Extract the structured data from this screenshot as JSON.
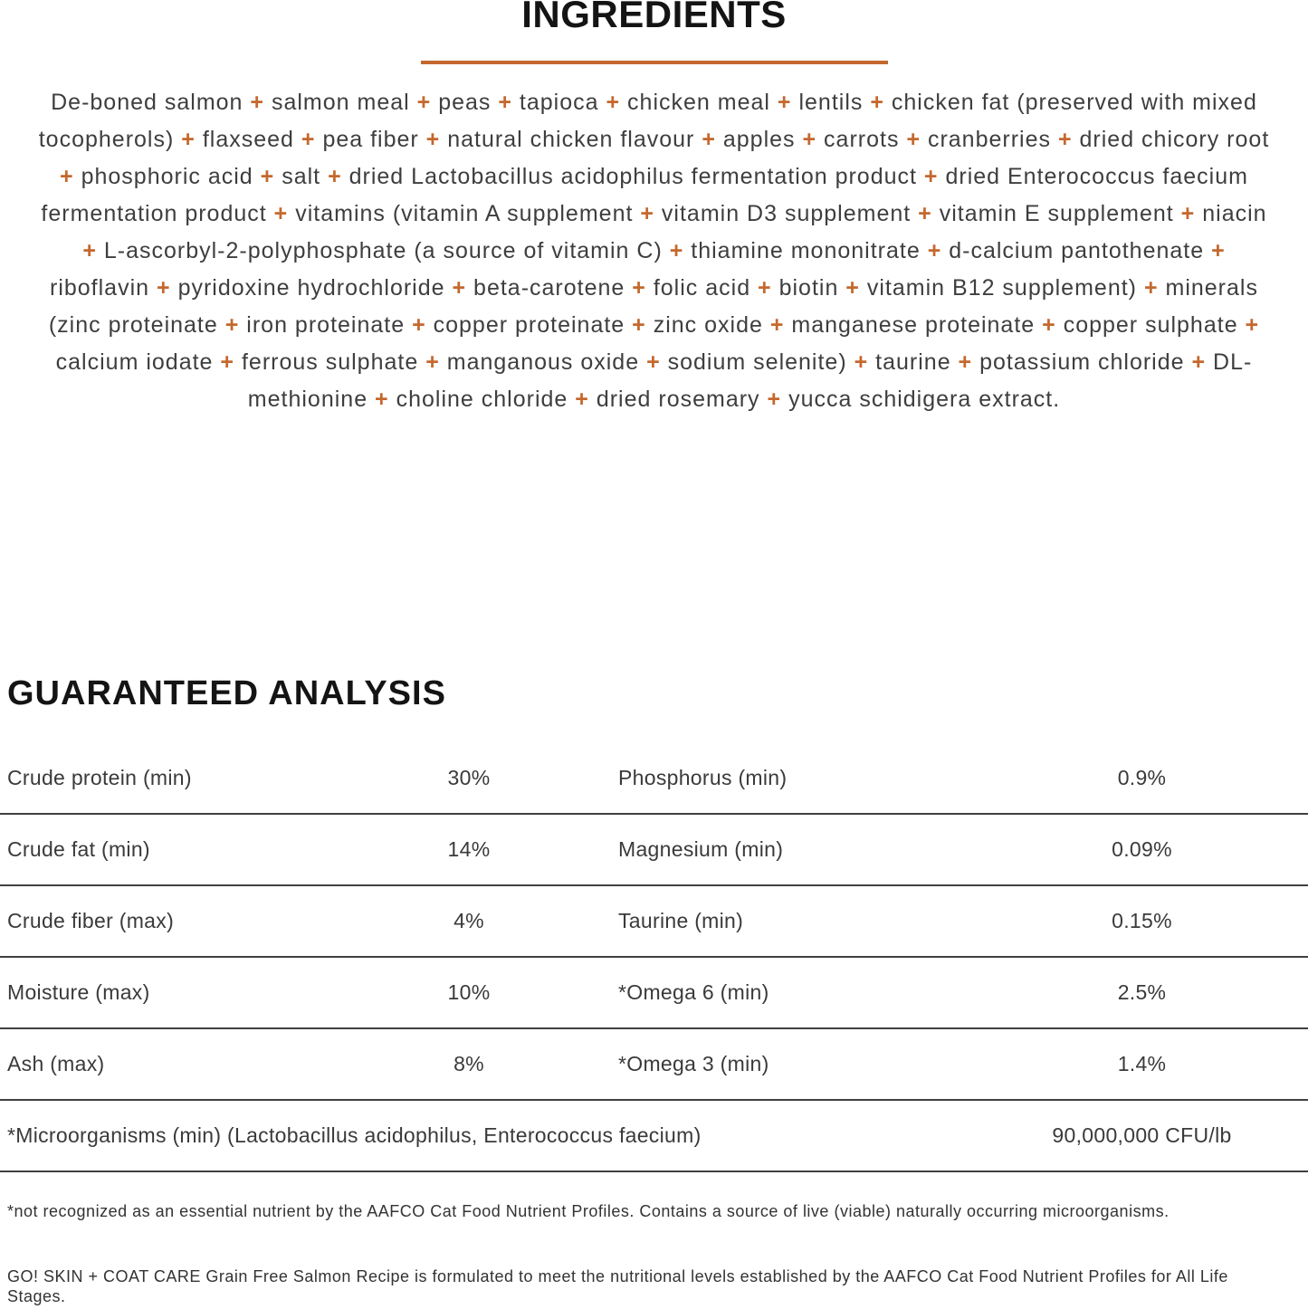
{
  "page": {
    "background": "#ffffff",
    "accent_orange": "#C4682E",
    "body_text_color": "#3E3E3E",
    "heading_color": "#141414",
    "divider_color": "#404040"
  },
  "ingredients_section": {
    "title": "INGREDIENTS",
    "separator": "+",
    "items": [
      "De-boned salmon",
      "salmon meal",
      "peas",
      "tapioca",
      "chicken meal",
      "lentils",
      "chicken fat (preserved with mixed tocopherols)",
      "flaxseed",
      "pea fiber",
      "natural chicken flavour",
      "apples",
      "carrots",
      "cranberries",
      "dried chicory root",
      "phosphoric acid",
      "salt",
      "dried Lactobacillus acidophilus fermentation product",
      "dried Enterococcus faecium fermentation product",
      "vitamins (vitamin A supplement",
      "vitamin D3 supplement",
      "vitamin E supplement",
      "niacin",
      "L-ascorbyl-2-polyphosphate (a source of vitamin C)",
      "thiamine mononitrate",
      "d-calcium pantothenate",
      "riboflavin",
      "pyridoxine hydrochloride",
      "beta-carotene",
      "folic acid",
      "biotin",
      "vitamin B12 supplement)",
      "minerals (zinc proteinate",
      "iron proteinate",
      "copper proteinate",
      "zinc oxide",
      "manganese proteinate",
      "copper sulphate",
      "calcium iodate",
      "ferrous sulphate",
      "manganous oxide",
      "sodium selenite)",
      "taurine",
      "potassium chloride",
      "DL-methionine",
      "choline chloride",
      "dried rosemary",
      "yucca schidigera extract."
    ]
  },
  "analysis_section": {
    "title": "GUARANTEED ANALYSIS",
    "rows": [
      {
        "left_label": "Crude protein (min)",
        "left_value": "30%",
        "right_label": "Phosphorus (min)",
        "right_value": "0.9%"
      },
      {
        "left_label": "Crude fat (min)",
        "left_value": "14%",
        "right_label": "Magnesium (min)",
        "right_value": "0.09%"
      },
      {
        "left_label": "Crude fiber (max)",
        "left_value": "4%",
        "right_label": "Taurine (min)",
        "right_value": "0.15%"
      },
      {
        "left_label": "Moisture (max)",
        "left_value": "10%",
        "right_label": "*Omega 6 (min)",
        "right_value": "2.5%"
      },
      {
        "left_label": "Ash (max)",
        "left_value": "8%",
        "right_label": "*Omega 3 (min)",
        "right_value": "1.4%"
      }
    ],
    "full_row": {
      "label": "*Microorganisms (min) (Lactobacillus acidophilus, Enterococcus faecium)",
      "value": "90,000,000 CFU/lb"
    }
  },
  "footnotes": {
    "note1": "*not recognized as an essential nutrient by the AAFCO Cat Food Nutrient Profiles. Contains a source of live (viable) naturally occurring microorganisms.",
    "note2": "GO! SKIN + COAT CARE Grain Free Salmon Recipe is formulated to meet the nutritional levels established by the AAFCO Cat Food Nutrient Profiles for All Life Stages."
  }
}
